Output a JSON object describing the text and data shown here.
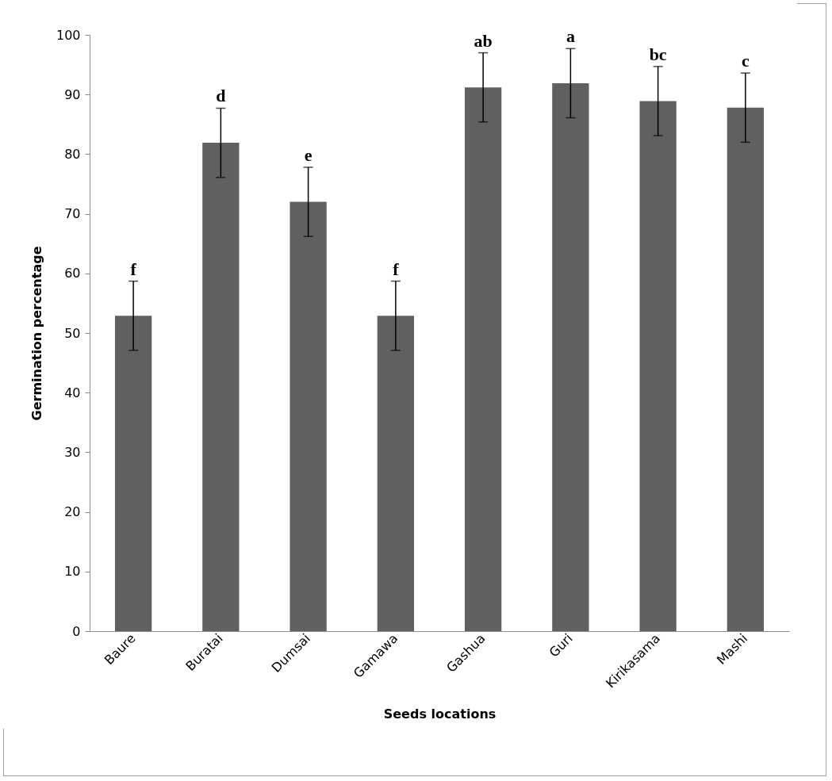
{
  "chart_data": {
    "type": "bar",
    "xlabel": "Seeds locations",
    "ylabel": "Germination percentage",
    "categories": [
      "Baure",
      "Buratai",
      "Dumsai",
      "Gamawa",
      "Gashua",
      "Guri",
      "Kirikasama",
      "Mashi"
    ],
    "values": [
      52.9,
      81.9,
      72.0,
      52.9,
      91.2,
      91.9,
      88.9,
      87.8
    ],
    "errors": [
      5.8,
      5.8,
      5.8,
      5.8,
      5.8,
      5.8,
      5.8,
      5.8
    ],
    "color": "#606060",
    "ylim": [
      0,
      100
    ],
    "yticks": [
      0,
      10,
      20,
      30,
      40,
      50,
      60,
      70,
      80,
      90,
      100
    ],
    "grid": false,
    "annotations": [
      {
        "text": "f",
        "x": "Baure",
        "y": 58.7
      },
      {
        "text": "d",
        "x": "Buratai",
        "y": 87.7
      },
      {
        "text": "e",
        "x": "Dumsai",
        "y": 77.8
      },
      {
        "text": "f",
        "x": "Gamawa",
        "y": 58.7
      },
      {
        "text": "ab",
        "x": "Gashua",
        "y": 97.0
      },
      {
        "text": "a",
        "x": "Guri",
        "y": 97.7
      },
      {
        "text": "bc",
        "x": "Kirikasama",
        "y": 94.7
      },
      {
        "text": "c",
        "x": "Mashi",
        "y": 93.6
      }
    ]
  }
}
